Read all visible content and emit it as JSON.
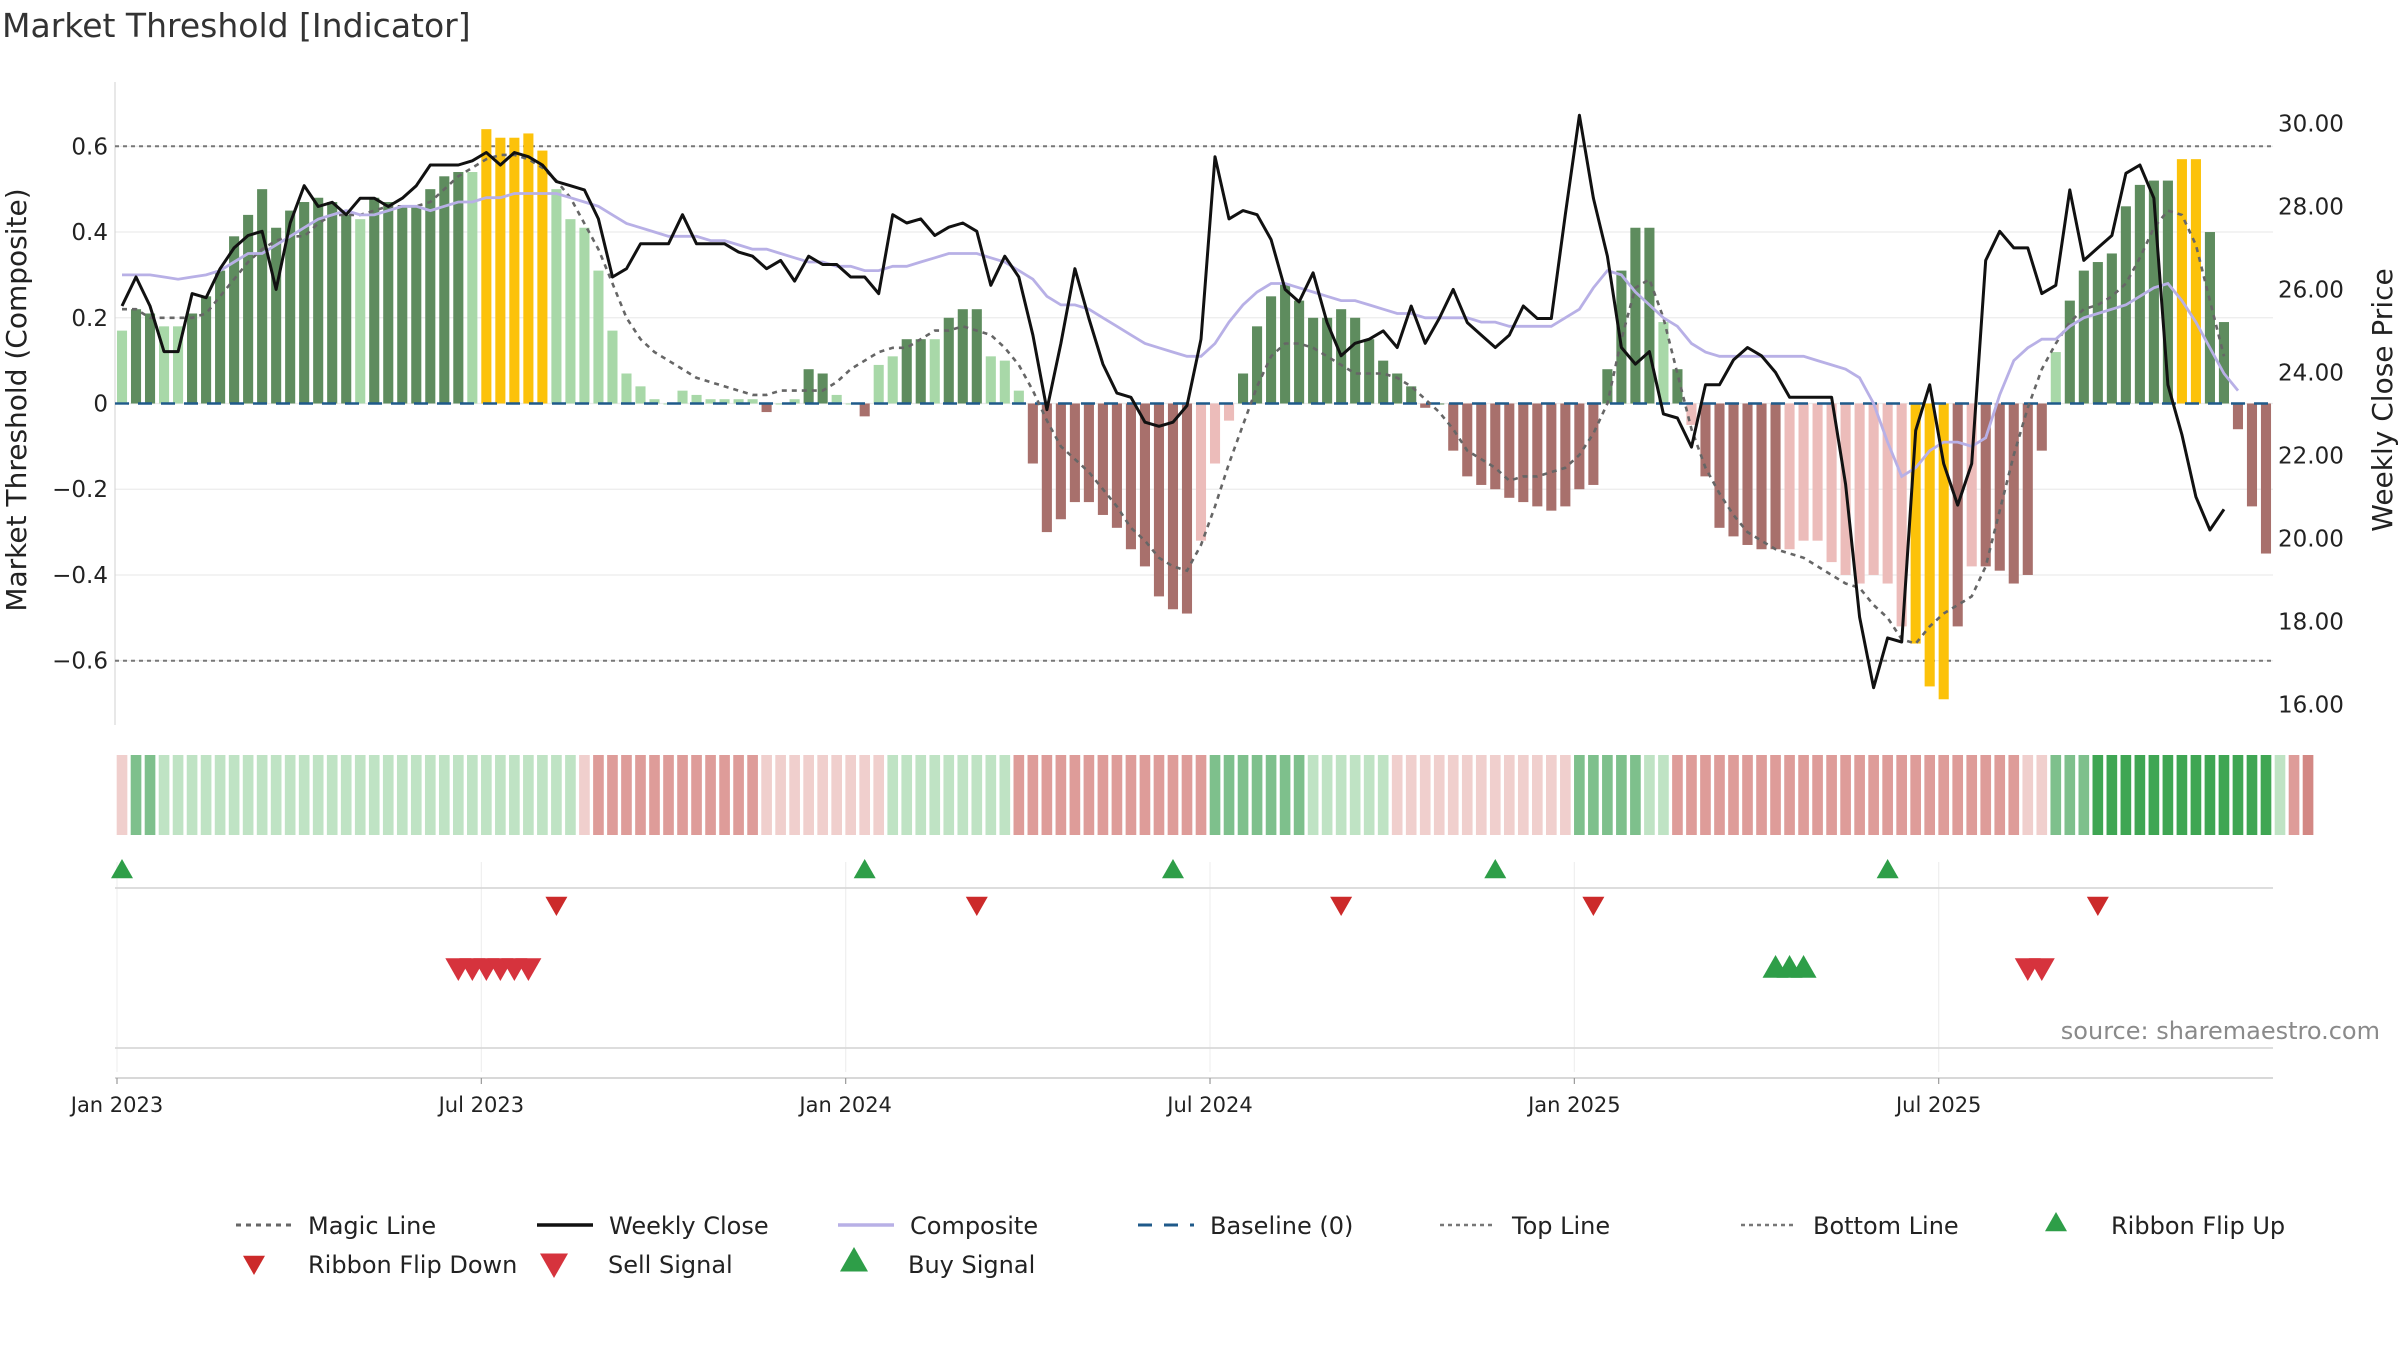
{
  "chart_data": {
    "type": "bar",
    "title": "Market Threshold [Indicator]",
    "ylabel_left": "Market Threshold (Composite)",
    "ylabel_right": "Weekly Close Price",
    "source": "source: sharemaestro.com",
    "ylim_left": [
      -0.75,
      0.75
    ],
    "ylim_right": [
      15.5,
      31.0
    ],
    "yticks_left": [
      {
        "v": 0.6,
        "label": "0.6"
      },
      {
        "v": 0.4,
        "label": "0.4"
      },
      {
        "v": 0.2,
        "label": "0.2"
      },
      {
        "v": 0,
        "label": "0"
      },
      {
        "v": -0.2,
        "label": "−0.2"
      },
      {
        "v": -0.4,
        "label": "−0.4"
      },
      {
        "v": -0.6,
        "label": "−0.6"
      }
    ],
    "yticks_right": [
      {
        "v": 30,
        "label": "30.00"
      },
      {
        "v": 28,
        "label": "28.00"
      },
      {
        "v": 26,
        "label": "26.00"
      },
      {
        "v": 24,
        "label": "24.00"
      },
      {
        "v": 22,
        "label": "22.00"
      },
      {
        "v": 20,
        "label": "20.00"
      },
      {
        "v": 18,
        "label": "18.00"
      },
      {
        "v": 16,
        "label": "16.00"
      }
    ],
    "top_line": 0.6,
    "bottom_line": -0.6,
    "x_ticks": [
      {
        "week": 0,
        "label": "Jan 2023"
      },
      {
        "week": 26,
        "label": "Jul 2023"
      },
      {
        "week": 52,
        "label": "Jan 2024"
      },
      {
        "week": 78,
        "label": "Jul 2024"
      },
      {
        "week": 104,
        "label": "Jan 2025"
      },
      {
        "week": 130,
        "label": "Jul 2025"
      }
    ],
    "histogram": [
      0.17,
      0.22,
      0.21,
      0.18,
      0.18,
      0.21,
      0.25,
      0.31,
      0.39,
      0.44,
      0.5,
      0.41,
      0.45,
      0.47,
      0.48,
      0.47,
      0.44,
      0.43,
      0.48,
      0.47,
      0.46,
      0.46,
      0.5,
      0.53,
      0.54,
      0.54,
      0.64,
      0.62,
      0.62,
      0.63,
      0.59,
      0.5,
      0.43,
      0.41,
      0.31,
      0.17,
      0.07,
      0.04,
      0.01,
      0.0,
      0.03,
      0.02,
      0.01,
      0.01,
      0.01,
      0.01,
      -0.02,
      0.0,
      0.01,
      0.08,
      0.07,
      0.02,
      0.0,
      -0.03,
      0.09,
      0.11,
      0.15,
      0.15,
      0.15,
      0.2,
      0.22,
      0.22,
      0.11,
      0.1,
      0.03,
      -0.14,
      -0.3,
      -0.27,
      -0.23,
      -0.23,
      -0.26,
      -0.29,
      -0.34,
      -0.38,
      -0.45,
      -0.48,
      -0.49,
      -0.32,
      -0.14,
      -0.04,
      0.07,
      0.18,
      0.25,
      0.28,
      0.24,
      0.2,
      0.2,
      0.22,
      0.2,
      0.15,
      0.1,
      0.07,
      0.04,
      -0.01,
      0.0,
      -0.11,
      -0.17,
      -0.19,
      -0.2,
      -0.22,
      -0.23,
      -0.24,
      -0.25,
      -0.24,
      -0.2,
      -0.19,
      0.08,
      0.31,
      0.41,
      0.41,
      0.19,
      0.08,
      -0.05,
      -0.17,
      -0.29,
      -0.31,
      -0.33,
      -0.34,
      -0.34,
      -0.34,
      -0.32,
      -0.32,
      -0.37,
      -0.4,
      -0.42,
      -0.4,
      -0.42,
      -0.52,
      -0.56,
      -0.66,
      -0.69,
      -0.52,
      -0.38,
      -0.38,
      -0.39,
      -0.42,
      -0.4,
      -0.11,
      0.12,
      0.24,
      0.31,
      0.33,
      0.35,
      0.46,
      0.51,
      0.52,
      0.52,
      0.57,
      0.57,
      0.4,
      0.19,
      -0.06,
      -0.24,
      -0.35
    ],
    "composite": [
      0.3,
      0.3,
      0.3,
      0.295,
      0.29,
      0.295,
      0.3,
      0.31,
      0.33,
      0.35,
      0.35,
      0.37,
      0.39,
      0.41,
      0.43,
      0.44,
      0.45,
      0.44,
      0.44,
      0.45,
      0.46,
      0.46,
      0.45,
      0.46,
      0.47,
      0.47,
      0.48,
      0.48,
      0.49,
      0.49,
      0.49,
      0.49,
      0.48,
      0.47,
      0.46,
      0.44,
      0.42,
      0.41,
      0.4,
      0.39,
      0.39,
      0.39,
      0.38,
      0.38,
      0.37,
      0.36,
      0.36,
      0.35,
      0.34,
      0.33,
      0.33,
      0.32,
      0.32,
      0.31,
      0.31,
      0.32,
      0.32,
      0.33,
      0.34,
      0.35,
      0.35,
      0.35,
      0.34,
      0.33,
      0.31,
      0.29,
      0.25,
      0.23,
      0.23,
      0.22,
      0.2,
      0.18,
      0.16,
      0.14,
      0.13,
      0.12,
      0.11,
      0.11,
      0.14,
      0.19,
      0.23,
      0.26,
      0.28,
      0.28,
      0.27,
      0.26,
      0.25,
      0.24,
      0.24,
      0.23,
      0.22,
      0.21,
      0.21,
      0.2,
      0.2,
      0.2,
      0.2,
      0.19,
      0.19,
      0.18,
      0.18,
      0.18,
      0.18,
      0.2,
      0.22,
      0.27,
      0.31,
      0.3,
      0.26,
      0.23,
      0.2,
      0.18,
      0.14,
      0.12,
      0.11,
      0.11,
      0.11,
      0.11,
      0.11,
      0.11,
      0.11,
      0.1,
      0.09,
      0.08,
      0.06,
      0.0,
      -0.09,
      -0.17,
      -0.15,
      -0.11,
      -0.09,
      -0.09,
      -0.1,
      -0.08,
      0.02,
      0.1,
      0.13,
      0.15,
      0.15,
      0.18,
      0.2,
      0.21,
      0.22,
      0.23,
      0.25,
      0.27,
      0.28,
      0.24,
      0.19,
      0.13,
      0.07,
      0.03
    ],
    "magic_line": [
      0.22,
      0.22,
      0.2,
      0.2,
      0.2,
      0.2,
      0.21,
      0.25,
      0.29,
      0.33,
      0.36,
      0.38,
      0.39,
      0.39,
      0.42,
      0.44,
      0.44,
      0.44,
      0.45,
      0.46,
      0.46,
      0.46,
      0.47,
      0.5,
      0.53,
      0.55,
      0.57,
      0.58,
      0.58,
      0.57,
      0.55,
      0.52,
      0.48,
      0.42,
      0.36,
      0.28,
      0.2,
      0.15,
      0.12,
      0.1,
      0.08,
      0.06,
      0.05,
      0.04,
      0.03,
      0.02,
      0.02,
      0.03,
      0.03,
      0.03,
      0.03,
      0.05,
      0.08,
      0.1,
      0.12,
      0.13,
      0.13,
      0.15,
      0.17,
      0.17,
      0.18,
      0.17,
      0.16,
      0.13,
      0.09,
      0.03,
      -0.04,
      -0.1,
      -0.13,
      -0.16,
      -0.2,
      -0.24,
      -0.29,
      -0.32,
      -0.36,
      -0.38,
      -0.39,
      -0.33,
      -0.24,
      -0.14,
      -0.05,
      0.04,
      0.11,
      0.14,
      0.14,
      0.13,
      0.11,
      0.09,
      0.07,
      0.07,
      0.07,
      0.06,
      0.04,
      0.01,
      -0.02,
      -0.06,
      -0.11,
      -0.13,
      -0.15,
      -0.18,
      -0.17,
      -0.17,
      -0.16,
      -0.15,
      -0.12,
      -0.07,
      0.0,
      0.15,
      0.27,
      0.29,
      0.2,
      0.07,
      -0.06,
      -0.15,
      -0.21,
      -0.26,
      -0.3,
      -0.32,
      -0.34,
      -0.35,
      -0.36,
      -0.38,
      -0.4,
      -0.42,
      -0.43,
      -0.47,
      -0.5,
      -0.55,
      -0.56,
      -0.52,
      -0.49,
      -0.47,
      -0.45,
      -0.38,
      -0.25,
      -0.12,
      -0.01,
      0.08,
      0.14,
      0.19,
      0.22,
      0.23,
      0.25,
      0.28,
      0.34,
      0.41,
      0.45,
      0.44,
      0.37,
      0.24,
      0.11
    ],
    "weekly_close": [
      25.6,
      26.3,
      25.6,
      24.5,
      24.5,
      25.9,
      25.8,
      26.5,
      27.0,
      27.3,
      27.4,
      26.0,
      27.6,
      28.5,
      28.0,
      28.1,
      27.8,
      28.2,
      28.2,
      28.0,
      28.2,
      28.5,
      29.0,
      29.0,
      29.0,
      29.1,
      29.3,
      29.0,
      29.3,
      29.2,
      29.0,
      28.6,
      28.5,
      28.4,
      27.7,
      26.3,
      26.5,
      27.1,
      27.1,
      27.1,
      27.8,
      27.1,
      27.1,
      27.1,
      26.9,
      26.8,
      26.5,
      26.7,
      26.2,
      26.8,
      26.6,
      26.6,
      26.3,
      26.3,
      25.9,
      27.8,
      27.6,
      27.7,
      27.3,
      27.5,
      27.6,
      27.4,
      26.1,
      26.8,
      26.3,
      24.9,
      23.1,
      24.7,
      26.5,
      25.3,
      24.2,
      23.5,
      23.4,
      22.8,
      22.7,
      22.8,
      23.2,
      24.8,
      29.2,
      27.7,
      27.9,
      27.8,
      27.2,
      26.0,
      25.7,
      26.4,
      25.2,
      24.4,
      24.7,
      24.8,
      25.0,
      24.6,
      25.6,
      24.7,
      25.3,
      26.0,
      25.2,
      24.9,
      24.6,
      24.9,
      25.6,
      25.3,
      25.3,
      27.8,
      30.2,
      28.2,
      26.8,
      24.6,
      24.2,
      24.5,
      23.0,
      22.9,
      22.2,
      23.7,
      23.7,
      24.3,
      24.6,
      24.4,
      24.0,
      23.4,
      23.4,
      23.4,
      23.4,
      21.3,
      18.1,
      16.4,
      17.6,
      17.5,
      22.6,
      23.7,
      21.8,
      20.8,
      21.8,
      26.7,
      27.4,
      27.0,
      27.0,
      25.9,
      26.1,
      28.4,
      26.7,
      27.0,
      27.3,
      28.8,
      29.0,
      28.2,
      23.7,
      22.5,
      21.0,
      20.2,
      20.7
    ],
    "ribbon_levels": [
      -1,
      2,
      2,
      1,
      1,
      1,
      1,
      1,
      1,
      1,
      1,
      1,
      1,
      1,
      1,
      1,
      1,
      1,
      1,
      1,
      1,
      1,
      1,
      1,
      1,
      1,
      1,
      1,
      1,
      1,
      1,
      1,
      1,
      -1,
      -2,
      -2,
      -2,
      -2,
      -2,
      -2,
      -2,
      -2,
      -2,
      -2,
      -2,
      -2,
      -1,
      -1,
      -1,
      -1,
      -1,
      -1,
      -1,
      -1,
      -1,
      1,
      1,
      1,
      1,
      1,
      1,
      1,
      1,
      1,
      -2,
      -2,
      -2,
      -2,
      -2,
      -2,
      -2,
      -2,
      -2,
      -2,
      -2,
      -2,
      -2,
      -2,
      2,
      2,
      2,
      2,
      2,
      2,
      2,
      1,
      1,
      1,
      1,
      1,
      1,
      -1,
      -1,
      -1,
      -1,
      -1,
      -1,
      -1,
      -1,
      -1,
      -1,
      -1,
      -1,
      -1,
      2,
      2,
      2,
      2,
      2,
      1,
      1,
      -2,
      -2,
      -2,
      -2,
      -2,
      -2,
      -2,
      -2,
      -2,
      -2,
      -2,
      -2,
      -2,
      -2,
      -2,
      -2,
      -2,
      -2,
      -2,
      -2,
      -2,
      -2,
      -2,
      -2,
      -2,
      -1,
      -1,
      2,
      2,
      2,
      3,
      3,
      3,
      3,
      3,
      3,
      3,
      3,
      3,
      3,
      3,
      3,
      3,
      1,
      -2,
      -3
    ],
    "ribbon_flip_up": [
      0,
      53,
      75,
      98,
      126
    ],
    "ribbon_flip_down": [
      31,
      61,
      87,
      105,
      141
    ],
    "sell_signals": [
      24,
      25,
      26,
      27,
      28,
      29,
      136,
      137
    ],
    "buy_signals": [
      118,
      119,
      120
    ],
    "colors": {
      "pos_strong": "#5e8c5e",
      "pos_weak": "#a8d8a8",
      "neg_strong": "#a8706c",
      "neg_weak": "#ecbcba",
      "extreme": "#fcc20a",
      "ribbon_pos_1": "#bfe3c4",
      "ribbon_pos_2": "#7ec08c",
      "ribbon_pos_3": "#3fa653",
      "ribbon_neg_1": "#f0cfcd",
      "ribbon_neg_2": "#de9c99",
      "ribbon_neg_3": "#d38884",
      "weekly_close": "#111111",
      "composite": "#b8b0e6",
      "magic_line": "#666666",
      "baseline": "#1f5a8a",
      "threshold_line": "#777777",
      "flip_up": "#2e9e48",
      "flip_down": "#cc2a2a",
      "sell": "#d6333d",
      "buy": "#2e9e48"
    },
    "legend": [
      {
        "key": "magic",
        "label": "Magic Line"
      },
      {
        "key": "close",
        "label": "Weekly Close"
      },
      {
        "key": "composite",
        "label": "Composite"
      },
      {
        "key": "baseline",
        "label": "Baseline (0)"
      },
      {
        "key": "top",
        "label": "Top Line"
      },
      {
        "key": "bottom",
        "label": "Bottom Line"
      },
      {
        "key": "flipup",
        "label": "Ribbon Flip Up"
      },
      {
        "key": "flipdown",
        "label": "Ribbon Flip Down"
      },
      {
        "key": "sell",
        "label": "Sell Signal"
      },
      {
        "key": "buy",
        "label": "Buy Signal"
      }
    ]
  }
}
